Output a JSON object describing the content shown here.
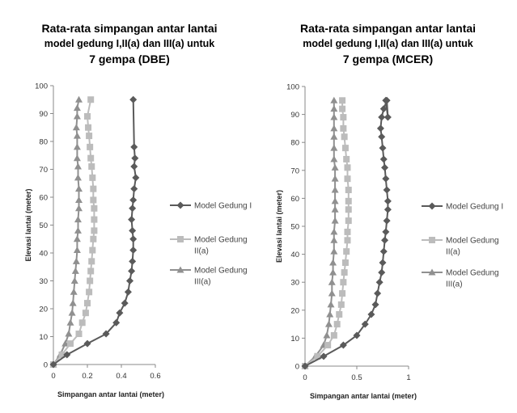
{
  "chart_data": [
    {
      "type": "line",
      "title": [
        "Rata-rata simpangan antar lantai",
        "model gedung I,II(a) dan III(a) untuk",
        "7 gempa (DBE)"
      ],
      "xlabel": "Simpangan antar lantai (meter)",
      "ylabel": "Elevasi lantai (meter)",
      "xlim": [
        0,
        0.6
      ],
      "ylim": [
        0,
        100
      ],
      "xticks": [
        "0",
        "0.2",
        "0.4",
        "0.6"
      ],
      "yticks": [
        "0",
        "10",
        "20",
        "30",
        "40",
        "50",
        "60",
        "70",
        "80",
        "90",
        "100"
      ],
      "legend_position": "right",
      "series": [
        {
          "name": [
            "Model Gedung I"
          ],
          "color": "#5a5a5a",
          "marker": "diamond",
          "x": [
            0,
            0.08,
            0.2,
            0.31,
            0.37,
            0.39,
            0.42,
            0.44,
            0.45,
            0.46,
            0.465,
            0.47,
            0.47,
            0.465,
            0.46,
            0.465,
            0.47,
            0.475,
            0.485,
            0.475,
            0.48,
            0.475,
            0.47
          ],
          "y": [
            0,
            3.5,
            7.5,
            11,
            15,
            18.5,
            22,
            26,
            30,
            33.5,
            37,
            41,
            45,
            48,
            52,
            56,
            59,
            63,
            67,
            71,
            74,
            78,
            95
          ]
        },
        {
          "name": [
            "Model Gedung",
            "II(a)"
          ],
          "color": "#bcbcbc",
          "marker": "square",
          "x": [
            0,
            0.05,
            0.1,
            0.15,
            0.17,
            0.19,
            0.2,
            0.21,
            0.215,
            0.22,
            0.225,
            0.23,
            0.235,
            0.24,
            0.24,
            0.24,
            0.235,
            0.235,
            0.23,
            0.225,
            0.22,
            0.215,
            0.21,
            0.205,
            0.2,
            0.22
          ],
          "y": [
            0,
            3.5,
            7.5,
            11,
            15,
            18.5,
            22,
            26,
            30,
            33.5,
            37,
            41,
            45,
            48,
            52,
            56,
            59,
            63,
            67,
            71,
            74,
            78,
            82,
            85,
            89,
            95
          ]
        },
        {
          "name": [
            "Model Gedung",
            "III(a)"
          ],
          "color": "#909090",
          "marker": "triangle",
          "x": [
            0,
            0.04,
            0.07,
            0.09,
            0.1,
            0.11,
            0.115,
            0.12,
            0.125,
            0.13,
            0.135,
            0.14,
            0.14,
            0.145,
            0.145,
            0.15,
            0.15,
            0.15,
            0.145,
            0.145,
            0.14,
            0.14,
            0.14,
            0.135,
            0.14,
            0.14,
            0.15
          ],
          "y": [
            0,
            3.5,
            7.5,
            11,
            15,
            18.5,
            22,
            26,
            30,
            33.5,
            37,
            41,
            45,
            48,
            52,
            56,
            59,
            63,
            67,
            71,
            74,
            78,
            82,
            85,
            89,
            92,
            95
          ]
        }
      ]
    },
    {
      "type": "line",
      "title": [
        "Rata-rata simpangan antar lantai",
        "model gedung I,II(a) dan III(a) untuk",
        "7 gempa (MCER)"
      ],
      "xlabel": "Simpangan antar lantai (meter)",
      "ylabel": "Elevasi lantai (meter)",
      "xlim": [
        0,
        1
      ],
      "ylim": [
        0,
        100
      ],
      "xticks": [
        "0",
        "0.5",
        "1"
      ],
      "yticks": [
        "0",
        "10",
        "20",
        "30",
        "40",
        "50",
        "60",
        "70",
        "80",
        "90",
        "100"
      ],
      "legend_position": "right",
      "series": [
        {
          "name": [
            "Model Gedung I"
          ],
          "color": "#5a5a5a",
          "marker": "diamond",
          "x": [
            0,
            0.18,
            0.37,
            0.5,
            0.58,
            0.64,
            0.68,
            0.7,
            0.72,
            0.74,
            0.75,
            0.76,
            0.77,
            0.78,
            0.79,
            0.8,
            0.8,
            0.79,
            0.78,
            0.77,
            0.76,
            0.75,
            0.74,
            0.73,
            0.74,
            0.76,
            0.79,
            0.8,
            0.78
          ],
          "y": [
            0,
            3.5,
            7.5,
            11,
            15,
            18.5,
            22,
            26,
            30,
            33.5,
            37,
            41,
            45,
            48,
            52,
            56,
            59,
            63,
            67,
            71,
            74,
            78,
            82,
            85,
            89,
            92,
            95,
            89,
            95
          ]
        },
        {
          "name": [
            "Model Gedung",
            "II(a)"
          ],
          "color": "#bcbcbc",
          "marker": "square",
          "x": [
            0,
            0.12,
            0.22,
            0.28,
            0.31,
            0.33,
            0.35,
            0.36,
            0.37,
            0.38,
            0.39,
            0.4,
            0.41,
            0.41,
            0.42,
            0.42,
            0.42,
            0.42,
            0.41,
            0.41,
            0.4,
            0.39,
            0.38,
            0.37,
            0.37,
            0.36,
            0.36
          ],
          "y": [
            0,
            3.5,
            7.5,
            11,
            15,
            18.5,
            22,
            26,
            30,
            33.5,
            37,
            41,
            45,
            48,
            52,
            56,
            59,
            63,
            67,
            71,
            74,
            78,
            82,
            85,
            89,
            92,
            95
          ]
        },
        {
          "name": [
            "Model Gedung",
            "III(a)"
          ],
          "color": "#909090",
          "marker": "triangle",
          "x": [
            0,
            0.1,
            0.18,
            0.21,
            0.23,
            0.24,
            0.25,
            0.26,
            0.26,
            0.27,
            0.27,
            0.28,
            0.28,
            0.28,
            0.29,
            0.29,
            0.29,
            0.29,
            0.29,
            0.29,
            0.28,
            0.28,
            0.28,
            0.28,
            0.28,
            0.28,
            0.28
          ],
          "y": [
            0,
            3.5,
            7.5,
            11,
            15,
            18.5,
            22,
            26,
            30,
            33.5,
            37,
            41,
            45,
            48,
            52,
            56,
            59,
            63,
            67,
            71,
            74,
            78,
            82,
            85,
            89,
            92,
            95
          ]
        }
      ]
    }
  ]
}
